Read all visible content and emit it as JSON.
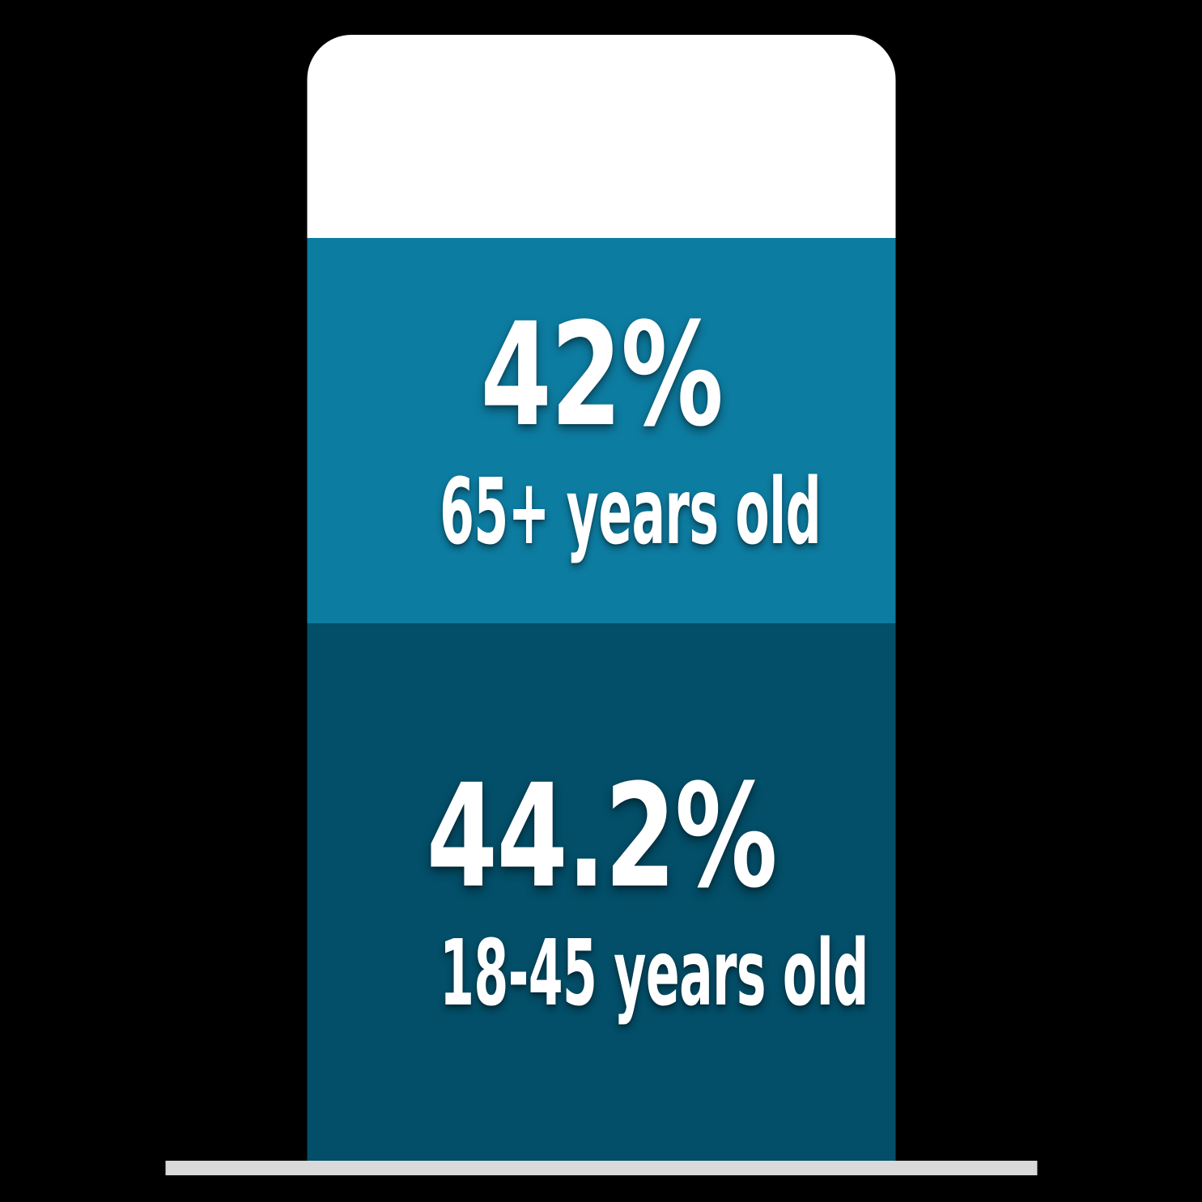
{
  "canvas": {
    "background_color": "#000000"
  },
  "chart_data": {
    "type": "bar",
    "subtype": "single-stacked-column-infographic",
    "categories": [
      "65+ years old",
      "18-45 years old"
    ],
    "values": [
      42,
      44.2
    ],
    "value_labels": [
      "42%",
      "44.2%"
    ],
    "segment_colors": [
      "#0d7ca1",
      "#034e68"
    ],
    "empty_cap_color": "#ffffff",
    "baseline_color": "#d9d9d9",
    "text_color": "#ffffff",
    "legend_position": "none",
    "grid": false,
    "axes_visible": false
  },
  "segments": [
    {
      "value_label": "42%",
      "category_label": "65+ years old",
      "color": "#0d7ca1"
    },
    {
      "value_label": "44.2%",
      "category_label": "18-45 years old",
      "color": "#034e68"
    }
  ]
}
